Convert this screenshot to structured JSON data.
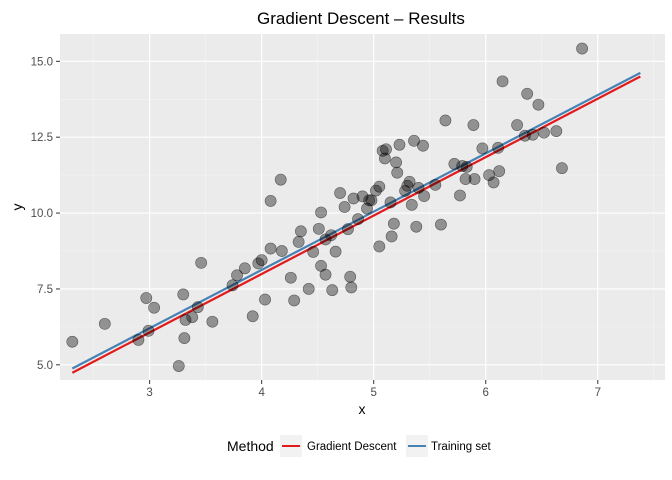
{
  "chart_data": {
    "type": "scatter",
    "title": "Gradient Descent – Results",
    "xlabel": "x",
    "ylabel": "y",
    "xlim": [
      2.2,
      7.6
    ],
    "ylim": [
      4.5,
      15.9
    ],
    "x_ticks": [
      3,
      4,
      5,
      6,
      7
    ],
    "y_ticks": [
      5.0,
      7.5,
      10.0,
      12.5,
      15.0
    ],
    "y_tick_labels": [
      "5.0",
      "7.5",
      "10.0",
      "12.5",
      "15.0"
    ],
    "grid": true,
    "legend_position": "bottom",
    "legend_title": "Method",
    "points": [
      [
        2.31,
        5.76
      ],
      [
        2.6,
        6.35
      ],
      [
        2.9,
        5.82
      ],
      [
        2.97,
        7.2
      ],
      [
        2.99,
        6.12
      ],
      [
        3.04,
        6.88
      ],
      [
        3.26,
        4.96
      ],
      [
        3.3,
        7.32
      ],
      [
        3.31,
        5.88
      ],
      [
        3.32,
        6.48
      ],
      [
        3.38,
        6.57
      ],
      [
        3.43,
        6.9
      ],
      [
        3.46,
        8.36
      ],
      [
        3.56,
        6.42
      ],
      [
        3.74,
        7.62
      ],
      [
        3.78,
        7.95
      ],
      [
        3.85,
        8.18
      ],
      [
        3.92,
        6.6
      ],
      [
        3.97,
        8.34
      ],
      [
        4.0,
        8.45
      ],
      [
        4.03,
        7.15
      ],
      [
        4.08,
        8.83
      ],
      [
        4.08,
        10.4
      ],
      [
        4.17,
        11.1
      ],
      [
        4.18,
        8.75
      ],
      [
        4.26,
        7.87
      ],
      [
        4.29,
        7.12
      ],
      [
        4.33,
        9.05
      ],
      [
        4.35,
        9.4
      ],
      [
        4.42,
        7.5
      ],
      [
        4.46,
        8.72
      ],
      [
        4.51,
        9.48
      ],
      [
        4.53,
        8.26
      ],
      [
        4.53,
        10.02
      ],
      [
        4.57,
        9.13
      ],
      [
        4.57,
        7.97
      ],
      [
        4.62,
        9.27
      ],
      [
        4.63,
        7.46
      ],
      [
        4.66,
        8.73
      ],
      [
        4.7,
        10.66
      ],
      [
        4.74,
        10.2
      ],
      [
        4.77,
        9.47
      ],
      [
        4.79,
        7.9
      ],
      [
        4.8,
        7.55
      ],
      [
        4.82,
        10.48
      ],
      [
        4.86,
        9.8
      ],
      [
        4.9,
        10.55
      ],
      [
        4.94,
        10.15
      ],
      [
        4.96,
        10.42
      ],
      [
        4.98,
        10.42
      ],
      [
        5.02,
        10.74
      ],
      [
        5.05,
        8.9
      ],
      [
        5.05,
        10.87
      ],
      [
        5.08,
        12.05
      ],
      [
        5.1,
        11.8
      ],
      [
        5.11,
        12.1
      ],
      [
        5.15,
        10.35
      ],
      [
        5.16,
        9.23
      ],
      [
        5.18,
        9.65
      ],
      [
        5.2,
        11.67
      ],
      [
        5.21,
        11.33
      ],
      [
        5.23,
        12.25
      ],
      [
        5.28,
        10.73
      ],
      [
        5.3,
        10.9
      ],
      [
        5.32,
        11.03
      ],
      [
        5.34,
        10.27
      ],
      [
        5.36,
        12.38
      ],
      [
        5.38,
        9.55
      ],
      [
        5.4,
        10.83
      ],
      [
        5.44,
        12.22
      ],
      [
        5.45,
        10.56
      ],
      [
        5.55,
        10.93
      ],
      [
        5.6,
        9.62
      ],
      [
        5.64,
        13.05
      ],
      [
        5.72,
        11.62
      ],
      [
        5.77,
        10.58
      ],
      [
        5.79,
        11.55
      ],
      [
        5.82,
        11.12
      ],
      [
        5.83,
        11.52
      ],
      [
        5.89,
        12.9
      ],
      [
        5.9,
        11.12
      ],
      [
        5.97,
        12.13
      ],
      [
        6.03,
        11.25
      ],
      [
        6.07,
        11.01
      ],
      [
        6.11,
        12.15
      ],
      [
        6.12,
        11.38
      ],
      [
        6.15,
        14.34
      ],
      [
        6.28,
        12.9
      ],
      [
        6.35,
        12.55
      ],
      [
        6.37,
        13.93
      ],
      [
        6.42,
        12.58
      ],
      [
        6.47,
        13.57
      ],
      [
        6.52,
        12.65
      ],
      [
        6.63,
        12.7
      ],
      [
        6.68,
        11.48
      ],
      [
        6.86,
        15.42
      ]
    ],
    "series": [
      {
        "name": "Gradient Descent",
        "color": "#e31a1c",
        "x": [
          2.31,
          7.38
        ],
        "y": [
          4.74,
          14.5
        ]
      },
      {
        "name": "Training set",
        "color": "#4682b4",
        "x": [
          2.31,
          7.38
        ],
        "y": [
          4.88,
          14.62
        ]
      }
    ],
    "point_color": "#000000"
  }
}
